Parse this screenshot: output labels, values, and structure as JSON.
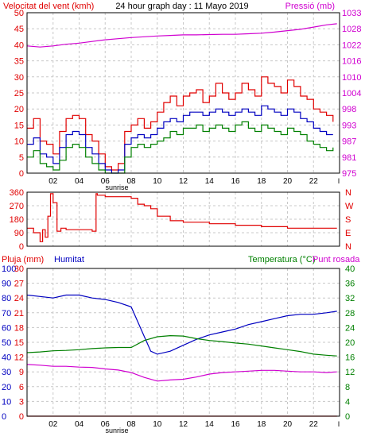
{
  "title": "24 hour graph day : 11 Mayo 2019",
  "colors": {
    "wind": "#e00000",
    "wind_avg": "#0000c0",
    "wind_low": "#008000",
    "pressure": "#d000d0",
    "direction": "#e00000",
    "humidity": "#0000c0",
    "temperature": "#008000",
    "dew_point": "#d000d0",
    "rain": "#e00000",
    "grid": "#c8c8c8",
    "frame": "#000000"
  },
  "x_ticks": [
    "02",
    "04",
    "06",
    "08",
    "10",
    "12",
    "14",
    "16",
    "18",
    "20",
    "22"
  ],
  "sunrise_label": "sunrise",
  "chart_data": [
    {
      "type": "line",
      "title": "24 hour graph day : 11 Mayo 2019",
      "left_axis_label": "Velocitat del vent (kmh)",
      "right_axis_label": "Pressió (mb)",
      "left_ticks": [
        "50",
        "45",
        "40",
        "35",
        "30",
        "25",
        "20",
        "15",
        "10",
        "5",
        "0"
      ],
      "right_ticks": [
        "1033",
        "1028",
        "1022",
        "1016",
        "1010",
        "1004",
        "998",
        "993",
        "987",
        "981",
        "975"
      ],
      "ylim_left": [
        0,
        50
      ],
      "ylim_right": [
        975,
        1033
      ],
      "xlim": [
        0,
        24
      ],
      "series": [
        {
          "key": "wind_gust",
          "color_key": "wind",
          "axis": "left",
          "x": [
            0,
            0.5,
            1,
            1.5,
            2,
            2.5,
            3,
            3.5,
            4,
            4.5,
            5,
            5.5,
            6,
            6.5,
            7,
            7.5,
            8,
            8.5,
            9,
            9.5,
            10,
            10.5,
            11,
            11.5,
            12,
            12.5,
            13,
            13.5,
            14,
            14.5,
            15,
            15.5,
            16,
            16.5,
            17,
            17.5,
            18,
            18.5,
            19,
            19.5,
            20,
            20.5,
            21,
            21.5,
            22,
            22.5,
            23,
            23.5
          ],
          "values": [
            14,
            17,
            10,
            9,
            6,
            13,
            17,
            18,
            17,
            12,
            10,
            6,
            2,
            1,
            3,
            13,
            15,
            17,
            14,
            16,
            19,
            22,
            24,
            21,
            24,
            25,
            26,
            22,
            24,
            28,
            25,
            23,
            25,
            28,
            26,
            24,
            30,
            28,
            27,
            25,
            29,
            27,
            24,
            23,
            20,
            19,
            18,
            16
          ]
        },
        {
          "key": "wind_avg",
          "color_key": "wind_avg",
          "axis": "left",
          "x": [
            0,
            0.5,
            1,
            1.5,
            2,
            2.5,
            3,
            3.5,
            4,
            4.5,
            5,
            5.5,
            6,
            6.5,
            7,
            7.5,
            8,
            8.5,
            9,
            9.5,
            10,
            10.5,
            11,
            11.5,
            12,
            12.5,
            13,
            13.5,
            14,
            14.5,
            15,
            15.5,
            16,
            16.5,
            17,
            17.5,
            18,
            18.5,
            19,
            19.5,
            20,
            20.5,
            21,
            21.5,
            22,
            22.5,
            23,
            23.5
          ],
          "values": [
            9,
            11,
            6,
            5,
            3,
            8,
            12,
            13,
            12,
            8,
            6,
            3,
            1,
            0,
            1,
            9,
            11,
            12,
            11,
            12,
            14,
            16,
            17,
            16,
            18,
            19,
            19,
            18,
            19,
            20,
            19,
            18,
            19,
            20,
            19,
            18,
            21,
            20,
            19,
            18,
            20,
            19,
            17,
            16,
            14,
            13,
            12,
            12
          ]
        },
        {
          "key": "wind_low",
          "color_key": "wind_low",
          "axis": "left",
          "x": [
            0,
            0.5,
            1,
            1.5,
            2,
            2.5,
            3,
            3.5,
            4,
            4.5,
            5,
            5.5,
            6,
            6.5,
            7,
            7.5,
            8,
            8.5,
            9,
            9.5,
            10,
            10.5,
            11,
            11.5,
            12,
            12.5,
            13,
            13.5,
            14,
            14.5,
            15,
            15.5,
            16,
            16.5,
            17,
            17.5,
            18,
            18.5,
            19,
            19.5,
            20,
            20.5,
            21,
            21.5,
            22,
            22.5,
            23,
            23.5
          ],
          "values": [
            5,
            7,
            3,
            2,
            1,
            4,
            8,
            9,
            8,
            5,
            3,
            1,
            0,
            0,
            0,
            5,
            8,
            9,
            8,
            9,
            10,
            11,
            13,
            12,
            14,
            14,
            15,
            13,
            14,
            15,
            14,
            13,
            15,
            16,
            14,
            13,
            15,
            14,
            13,
            12,
            14,
            13,
            12,
            10,
            9,
            8,
            7,
            8
          ]
        },
        {
          "key": "pressure",
          "color_key": "pressure",
          "axis": "right",
          "x": [
            0,
            1,
            2,
            3,
            4,
            5,
            6,
            7,
            8,
            9,
            10,
            11,
            12,
            13,
            14,
            15,
            16,
            17,
            18,
            19,
            20,
            21,
            22,
            23,
            23.8
          ],
          "values": [
            1021,
            1020.6,
            1021,
            1021.6,
            1022,
            1022.6,
            1023.2,
            1023.6,
            1024,
            1024.3,
            1024.6,
            1024.8,
            1025,
            1025,
            1025.1,
            1025.2,
            1025.2,
            1025.4,
            1025.6,
            1026,
            1026.5,
            1027,
            1027.8,
            1028.6,
            1029
          ]
        }
      ]
    },
    {
      "type": "line",
      "left_ticks": [
        "360",
        "270",
        "180",
        "90",
        "0"
      ],
      "right_ticks": [
        "N",
        "W",
        "S",
        "E",
        "N"
      ],
      "ylim": [
        0,
        360
      ],
      "xlim": [
        0,
        24
      ],
      "series": [
        {
          "key": "direction",
          "color_key": "direction",
          "x": [
            0,
            0.5,
            1,
            1.2,
            1.4,
            1.6,
            1.8,
            2,
            2.3,
            2.6,
            3,
            4,
            5,
            5.3,
            5.4,
            6,
            7,
            8,
            8.5,
            9,
            9.5,
            10,
            11,
            12,
            13,
            14,
            15,
            16,
            17,
            18,
            19,
            20,
            21,
            22,
            23,
            23.8
          ],
          "values": [
            120,
            90,
            30,
            110,
            60,
            200,
            350,
            290,
            100,
            120,
            110,
            110,
            100,
            350,
            340,
            330,
            330,
            320,
            280,
            270,
            250,
            200,
            170,
            160,
            160,
            150,
            150,
            140,
            140,
            130,
            130,
            120,
            120,
            120,
            120,
            120
          ]
        }
      ]
    },
    {
      "type": "line",
      "rain_axis_label": "Pluja (mm)",
      "humidity_axis_label": "Humitat",
      "temperature_axis_label": "Temperatura (°C)",
      "dew_point_axis_label": "Punt rosada",
      "rain_ticks": [
        "30",
        "27",
        "24",
        "21",
        "18",
        "15",
        "12",
        "9",
        "6",
        "3",
        "0"
      ],
      "humidity_ticks": [
        "100",
        "90",
        "80",
        "70",
        "60",
        "50",
        "40",
        "30",
        "20",
        "10",
        "0"
      ],
      "temperature_ticks": [
        "40",
        "36",
        "32",
        "28",
        "24",
        "20",
        "16",
        "12",
        "8",
        "4",
        "0"
      ],
      "ylim_rain": [
        0,
        30
      ],
      "ylim_humidity": [
        0,
        100
      ],
      "ylim_temperature": [
        0,
        40
      ],
      "xlim": [
        0,
        24
      ],
      "series": [
        {
          "key": "humidity",
          "color_key": "humidity",
          "axis": "humidity",
          "x": [
            0,
            1,
            2,
            3,
            4,
            5,
            6,
            7,
            8,
            9,
            9.5,
            10,
            11,
            12,
            13,
            14,
            15,
            16,
            17,
            18,
            19,
            20,
            21,
            22,
            23,
            23.8
          ],
          "values": [
            82,
            81,
            80,
            82,
            82,
            80,
            79,
            77,
            74,
            54,
            44,
            42,
            44,
            48,
            52,
            55,
            57,
            59,
            62,
            64,
            66,
            68,
            69,
            69,
            70,
            71
          ]
        },
        {
          "key": "temperature",
          "color_key": "temperature",
          "axis": "temperature",
          "x": [
            0,
            1,
            2,
            3,
            4,
            5,
            6,
            7,
            8,
            9,
            10,
            11,
            12,
            13,
            14,
            15,
            16,
            17,
            18,
            19,
            20,
            21,
            22,
            23,
            23.8
          ],
          "values": [
            17.2,
            17.4,
            17.7,
            17.8,
            18,
            18.3,
            18.5,
            18.6,
            18.6,
            20.5,
            21.5,
            21.8,
            21.7,
            21,
            20.5,
            20.2,
            19.8,
            19.5,
            19,
            18.5,
            18,
            17.5,
            16.8,
            16.5,
            16.3
          ]
        },
        {
          "key": "dew_point",
          "color_key": "dew_point",
          "axis": "temperature",
          "x": [
            0,
            1,
            2,
            3,
            4,
            5,
            6,
            7,
            8,
            9,
            10,
            11,
            12,
            13,
            14,
            15,
            16,
            17,
            18,
            19,
            20,
            21,
            22,
            23,
            23.8
          ],
          "values": [
            14,
            13.8,
            13.5,
            13.5,
            13.3,
            13.2,
            12.8,
            12.5,
            11.8,
            10.5,
            9.5,
            9.8,
            10,
            10.6,
            11.4,
            11.8,
            12,
            12.2,
            12.4,
            12.4,
            12.2,
            12,
            12,
            11.8,
            12
          ]
        },
        {
          "key": "rain",
          "color_key": "rain",
          "axis": "rain",
          "x": [
            0,
            23.8
          ],
          "values": [
            0,
            0
          ]
        }
      ]
    }
  ]
}
